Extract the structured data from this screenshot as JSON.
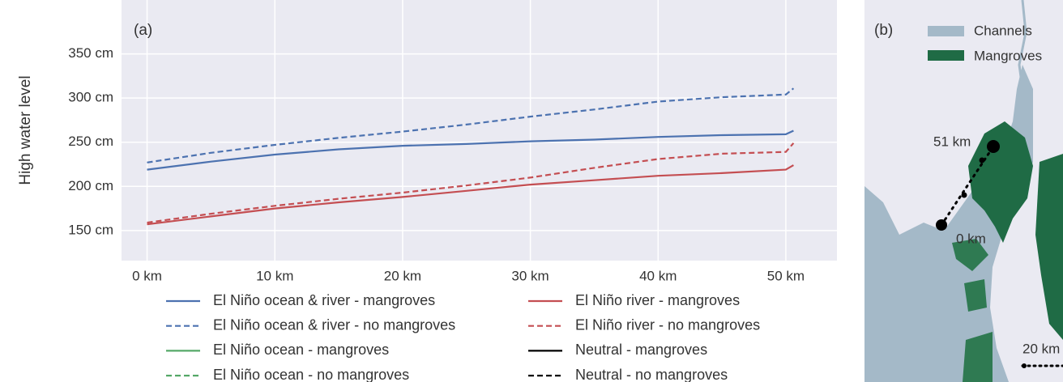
{
  "chart_data": {
    "type": "line",
    "panel_label": "(a)",
    "y_label": "High water level",
    "x": [
      0,
      5,
      10,
      15,
      20,
      25,
      30,
      35,
      40,
      45,
      50,
      50.6
    ],
    "xlim": [
      -2.0,
      54.0
    ],
    "xticks": [
      {
        "value": 0,
        "label": "0 km"
      },
      {
        "value": 10,
        "label": "10 km"
      },
      {
        "value": 20,
        "label": "20 km"
      },
      {
        "value": 30,
        "label": "30 km"
      },
      {
        "value": 40,
        "label": "40 km"
      },
      {
        "value": 50,
        "label": "50 km"
      }
    ],
    "ylim": [
      116,
      411
    ],
    "yticks": [
      {
        "value": 150,
        "label": "150 cm"
      },
      {
        "value": 200,
        "label": "200 cm"
      },
      {
        "value": 250,
        "label": "250 cm"
      },
      {
        "value": 300,
        "label": "300 cm"
      },
      {
        "value": 350,
        "label": "350 cm"
      }
    ],
    "grid": true,
    "series": [
      {
        "name": "El Niño ocean & river - mangroves",
        "color": "#4c72b0",
        "linestyle": "solid",
        "values": [
          219,
          228,
          236,
          242,
          246,
          248,
          251,
          253,
          256,
          258,
          259,
          263
        ]
      },
      {
        "name": "El Niño ocean & river - no mangroves",
        "color": "#4c72b0",
        "linestyle": "dashed",
        "values": [
          227,
          238,
          247,
          255,
          262,
          270,
          279,
          287,
          296,
          301,
          304,
          311
        ]
      },
      {
        "name": "El Niño ocean - mangroves",
        "color": "#55a868",
        "linestyle": "solid",
        "values": [
          null,
          null,
          null,
          null,
          null,
          null,
          null,
          null,
          null,
          null,
          null,
          null
        ]
      },
      {
        "name": "El Niño ocean - no mangroves",
        "color": "#55a868",
        "linestyle": "dashed",
        "values": [
          null,
          null,
          null,
          null,
          null,
          null,
          null,
          null,
          null,
          null,
          null,
          null
        ]
      },
      {
        "name": "El Niño river - mangroves",
        "color": "#c44e52",
        "linestyle": "solid",
        "values": [
          157,
          166,
          175,
          182,
          188,
          195,
          202,
          207,
          212,
          215,
          219,
          224
        ]
      },
      {
        "name": "El Niño river - no mangroves",
        "color": "#c44e52",
        "linestyle": "dashed",
        "values": [
          159,
          169,
          178,
          186,
          193,
          201,
          210,
          221,
          231,
          237,
          239,
          249
        ]
      },
      {
        "name": "Neutral - mangroves",
        "color": "#000000",
        "linestyle": "solid",
        "values": [
          null,
          null,
          null,
          null,
          null,
          null,
          null,
          null,
          null,
          null,
          null,
          null
        ]
      },
      {
        "name": "Neutral - no mangroves",
        "color": "#000000",
        "linestyle": "dashed",
        "values": [
          null,
          null,
          null,
          null,
          null,
          null,
          null,
          null,
          null,
          null,
          null,
          null
        ]
      }
    ]
  },
  "map_panel": {
    "panel_label": "(b)",
    "legend": [
      {
        "name": "Channels",
        "color": "#a4b9c8"
      },
      {
        "name": "Mangroves",
        "color": "#1f6b45"
      }
    ],
    "annotations": [
      "51 km",
      "0 km"
    ],
    "scale_bar": "20 km"
  }
}
